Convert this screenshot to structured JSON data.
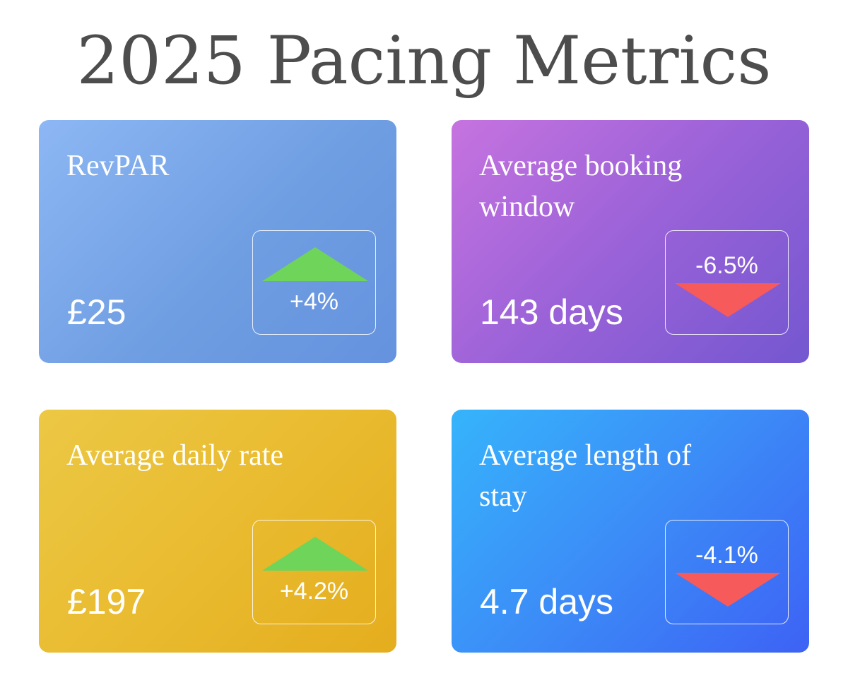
{
  "title": "2025 Pacing Metrics",
  "colors": {
    "up_arrow": "#6fd45a",
    "down_arrow": "#f65a5a",
    "title_text": "#4d4d4d"
  },
  "cards": [
    {
      "title": "RevPAR",
      "value": "£25",
      "change": "+4%",
      "direction": "up",
      "arrow_icon": "triangle-up-icon",
      "background": [
        "#8db7f4",
        "#6592de"
      ]
    },
    {
      "title": "Average booking window",
      "value": "143 days",
      "change": "-6.5%",
      "direction": "down",
      "arrow_icon": "triangle-down-icon",
      "background": [
        "#c673df",
        "#7457d0"
      ]
    },
    {
      "title": "Average daily rate",
      "value": "£197",
      "change": "+4.2%",
      "direction": "up",
      "arrow_icon": "triangle-up-icon",
      "background": [
        "#ecc845",
        "#e4ad1e"
      ]
    },
    {
      "title": "Average length of stay",
      "value": "4.7 days",
      "change": "-4.1%",
      "direction": "down",
      "arrow_icon": "triangle-down-icon",
      "background": [
        "#36b4fb",
        "#3d62f5"
      ]
    }
  ]
}
